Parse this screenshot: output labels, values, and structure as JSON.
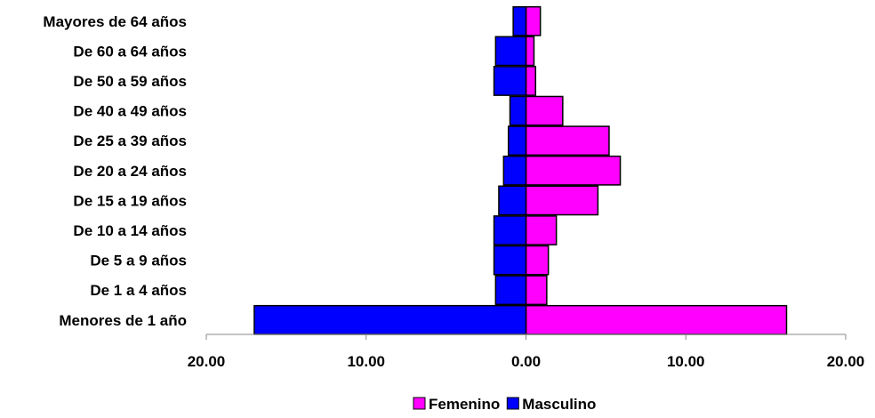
{
  "chart_data": {
    "type": "bar",
    "orientation": "horizontal",
    "layout": "population-pyramid",
    "categories": [
      "Menores de 1 año",
      "De 1 a 4 años",
      "De 5 a 9 años",
      "De 10 a 14 años",
      "De 15 a 19 años",
      "De 20 a 24 años",
      "De 25 a 39 años",
      "De 40 a 49 años",
      "De 50 a 59 años",
      "De 60 a 64 años",
      "Mayores de 64 años"
    ],
    "series": [
      {
        "name": "Femenino",
        "side": "right",
        "color": "#ff00ff",
        "values": [
          16.3,
          1.3,
          1.4,
          1.9,
          4.5,
          5.9,
          5.2,
          2.3,
          0.6,
          0.5,
          0.9
        ]
      },
      {
        "name": "Masculino",
        "side": "left",
        "color": "#0000ff",
        "values": [
          17.0,
          1.9,
          2.0,
          2.0,
          1.7,
          1.4,
          1.1,
          1.0,
          2.0,
          1.9,
          0.8
        ]
      }
    ],
    "xlim": [
      -20,
      20
    ],
    "x_ticks": [
      -20,
      -10,
      0,
      10,
      20
    ],
    "x_tick_labels": [
      "20.00",
      "10.00",
      "0.00",
      "10.00",
      "20.00"
    ],
    "grid": false,
    "legend_position": "bottom"
  }
}
